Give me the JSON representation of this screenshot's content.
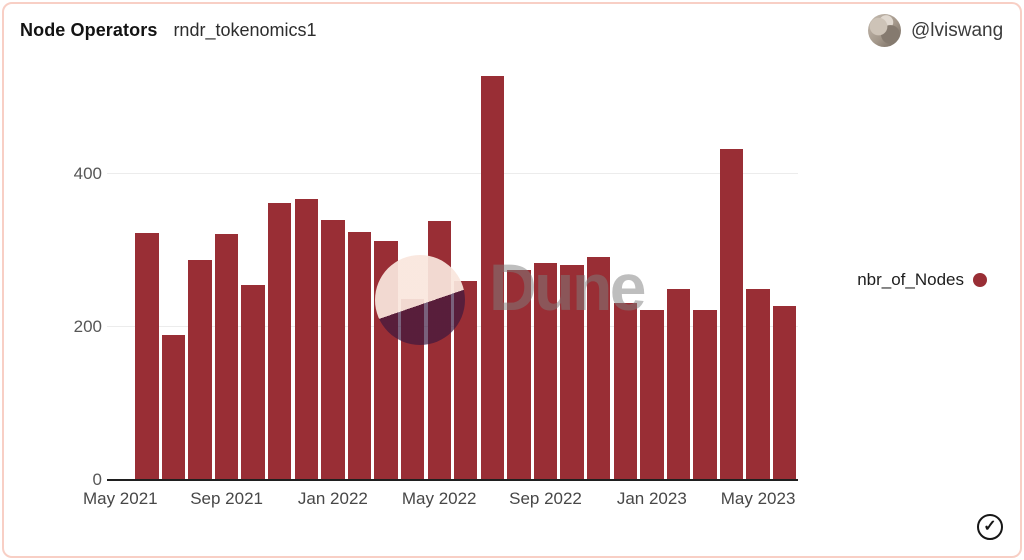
{
  "header": {
    "title": "Node Operators",
    "query_name": "rndr_tokenomics1",
    "author_handle": "@lviswang"
  },
  "legend": {
    "label": "nbr_of_Nodes"
  },
  "watermark": {
    "text": "Dune"
  },
  "icons": {
    "verified_check": "✓"
  },
  "colors": {
    "bar": "#992e35",
    "card_border": "#f8cfc5",
    "grid": "#ececec",
    "baseline": "#1f1f1f",
    "y_label": "#575757",
    "x_label": "#474747"
  },
  "chart_data": {
    "type": "bar",
    "title": "Node Operators",
    "series_name": "nbr_of_Nodes",
    "x": [
      "Jun 2021",
      "Jul 2021",
      "Aug 2021",
      "Sep 2021",
      "Oct 2021",
      "Nov 2021",
      "Dec 2021",
      "Jan 2022",
      "Feb 2022",
      "Mar 2022",
      "Apr 2022",
      "May 2022",
      "Jun 2022",
      "Jul 2022",
      "Aug 2022",
      "Sep 2022",
      "Oct 2022",
      "Nov 2022",
      "Dec 2022",
      "Jan 2023",
      "Feb 2023",
      "Mar 2023",
      "Apr 2023",
      "May 2023",
      "Jun 2023"
    ],
    "values": [
      323,
      189,
      288,
      322,
      255,
      362,
      367,
      340,
      324,
      312,
      237,
      339,
      260,
      528,
      275,
      283,
      281,
      292,
      231,
      222,
      250,
      222,
      432,
      250,
      227
    ],
    "xticks": {
      "labels": [
        "May 2021",
        "Sep 2021",
        "Jan 2022",
        "May 2022",
        "Sep 2022",
        "Jan 2023",
        "May 2023"
      ],
      "slot_indices": [
        0,
        4,
        8,
        12,
        16,
        20,
        24
      ]
    },
    "yticks": [
      0,
      200,
      400
    ],
    "ylim": [
      0,
      541
    ],
    "total_slots": 26,
    "first_bar_slot": 1,
    "grid": "horizontal-only",
    "legend_position": "right"
  }
}
